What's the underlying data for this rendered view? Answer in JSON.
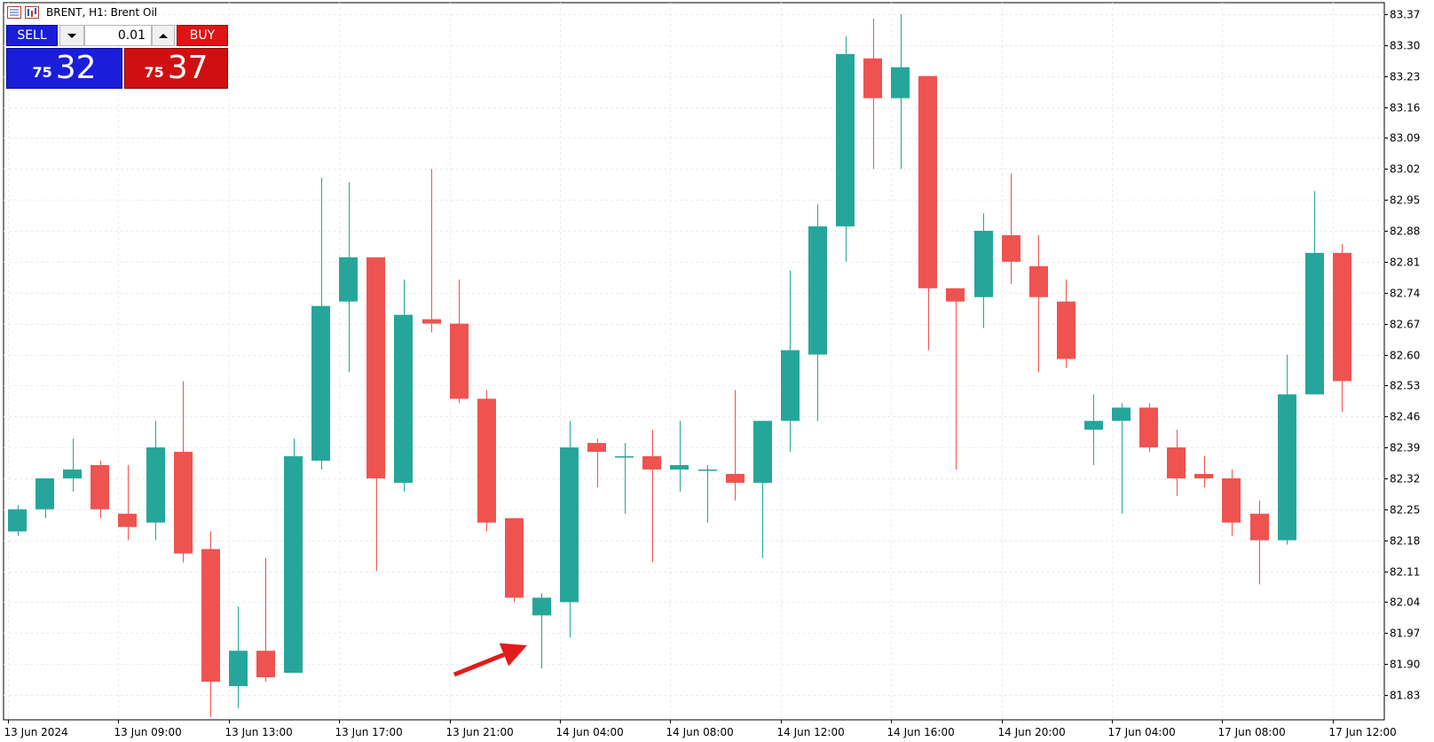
{
  "header": {
    "title": "BRENT, H1:  Brent Oil"
  },
  "trade_panel": {
    "sell_label": "SELL",
    "buy_label": "BUY",
    "lot_value": "0.01",
    "sell_price_small": "75",
    "sell_price_big": "32",
    "buy_price_small": "75",
    "buy_price_big": "37"
  },
  "colors": {
    "bull": "#26a69a",
    "bear": "#ef5350",
    "grid": "#ececec",
    "arrow": "#e31b1b",
    "sell_button": "#1b1ed8",
    "buy_button": "#e01414"
  },
  "chart_data": {
    "type": "candlestick",
    "symbol": "BRENT",
    "timeframe": "H1",
    "ylim": [
      81.79,
      83.38
    ],
    "y_ticks": [
      "83.37",
      "83.30",
      "83.23",
      "83.16",
      "83.09",
      "83.02",
      "82.95",
      "82.88",
      "82.81",
      "82.74",
      "82.67",
      "82.60",
      "82.53",
      "82.46",
      "82.39",
      "82.32",
      "82.25",
      "82.18",
      "82.11",
      "82.04",
      "81.97",
      "81.90",
      "81.83"
    ],
    "x_labels": [
      {
        "i": 0,
        "label": "13 Jun 2024"
      },
      {
        "i": 4,
        "label": "13 Jun 09:00"
      },
      {
        "i": 8,
        "label": "13 Jun 13:00"
      },
      {
        "i": 12,
        "label": "13 Jun 17:00"
      },
      {
        "i": 16,
        "label": "13 Jun 21:00"
      },
      {
        "i": 20,
        "label": "14 Jun 04:00"
      },
      {
        "i": 24,
        "label": "14 Jun 08:00"
      },
      {
        "i": 28,
        "label": "14 Jun 12:00"
      },
      {
        "i": 32,
        "label": "14 Jun 16:00"
      },
      {
        "i": 36,
        "label": "14 Jun 20:00"
      },
      {
        "i": 40,
        "label": "17 Jun 04:00"
      },
      {
        "i": 44,
        "label": "17 Jun 08:00"
      },
      {
        "i": 48,
        "label": "17 Jun 12:00"
      }
    ],
    "candles": [
      {
        "o": 82.2,
        "h": 82.26,
        "l": 82.19,
        "c": 82.25
      },
      {
        "o": 82.25,
        "h": 82.32,
        "l": 82.23,
        "c": 82.32
      },
      {
        "o": 82.32,
        "h": 82.41,
        "l": 82.29,
        "c": 82.34
      },
      {
        "o": 82.35,
        "h": 82.36,
        "l": 82.23,
        "c": 82.25
      },
      {
        "o": 82.24,
        "h": 82.35,
        "l": 82.18,
        "c": 82.21
      },
      {
        "o": 82.22,
        "h": 82.45,
        "l": 82.18,
        "c": 82.39
      },
      {
        "o": 82.38,
        "h": 82.54,
        "l": 82.13,
        "c": 82.15
      },
      {
        "o": 82.16,
        "h": 82.2,
        "l": 81.78,
        "c": 81.86
      },
      {
        "o": 81.85,
        "h": 82.03,
        "l": 81.8,
        "c": 81.93
      },
      {
        "o": 81.93,
        "h": 82.14,
        "l": 81.86,
        "c": 81.87
      },
      {
        "o": 81.88,
        "h": 82.41,
        "l": 81.88,
        "c": 82.37
      },
      {
        "o": 82.36,
        "h": 83.0,
        "l": 82.34,
        "c": 82.71
      },
      {
        "o": 82.72,
        "h": 82.99,
        "l": 82.56,
        "c": 82.82
      },
      {
        "o": 82.82,
        "h": 82.82,
        "l": 82.11,
        "c": 82.32
      },
      {
        "o": 82.31,
        "h": 82.77,
        "l": 82.29,
        "c": 82.69
      },
      {
        "o": 82.68,
        "h": 83.02,
        "l": 82.65,
        "c": 82.67
      },
      {
        "o": 82.67,
        "h": 82.77,
        "l": 82.49,
        "c": 82.5
      },
      {
        "o": 82.5,
        "h": 82.52,
        "l": 82.2,
        "c": 82.22
      },
      {
        "o": 82.23,
        "h": 82.23,
        "l": 82.04,
        "c": 82.05
      },
      {
        "o": 82.01,
        "h": 82.06,
        "l": 81.89,
        "c": 82.05
      },
      {
        "o": 82.04,
        "h": 82.45,
        "l": 81.96,
        "c": 82.39
      },
      {
        "o": 82.4,
        "h": 82.41,
        "l": 82.3,
        "c": 82.38
      },
      {
        "o": 82.37,
        "h": 82.4,
        "l": 82.24,
        "c": 82.37
      },
      {
        "o": 82.37,
        "h": 82.43,
        "l": 82.13,
        "c": 82.34
      },
      {
        "o": 82.34,
        "h": 82.45,
        "l": 82.29,
        "c": 82.35
      },
      {
        "o": 82.34,
        "h": 82.35,
        "l": 82.22,
        "c": 82.34
      },
      {
        "o": 82.33,
        "h": 82.52,
        "l": 82.27,
        "c": 82.31
      },
      {
        "o": 82.31,
        "h": 82.45,
        "l": 82.14,
        "c": 82.45
      },
      {
        "o": 82.45,
        "h": 82.79,
        "l": 82.38,
        "c": 82.61
      },
      {
        "o": 82.6,
        "h": 82.94,
        "l": 82.45,
        "c": 82.89
      },
      {
        "o": 82.89,
        "h": 83.32,
        "l": 82.81,
        "c": 83.28
      },
      {
        "o": 83.27,
        "h": 83.36,
        "l": 83.02,
        "c": 83.18
      },
      {
        "o": 83.18,
        "h": 83.37,
        "l": 83.02,
        "c": 83.25
      },
      {
        "o": 83.23,
        "h": 83.23,
        "l": 82.61,
        "c": 82.75
      },
      {
        "o": 82.75,
        "h": 82.75,
        "l": 82.34,
        "c": 82.72
      },
      {
        "o": 82.73,
        "h": 82.92,
        "l": 82.66,
        "c": 82.88
      },
      {
        "o": 82.87,
        "h": 83.01,
        "l": 82.76,
        "c": 82.81
      },
      {
        "o": 82.8,
        "h": 82.87,
        "l": 82.56,
        "c": 82.73
      },
      {
        "o": 82.72,
        "h": 82.77,
        "l": 82.57,
        "c": 82.59
      },
      {
        "o": 82.43,
        "h": 82.51,
        "l": 82.35,
        "c": 82.45
      },
      {
        "o": 82.45,
        "h": 82.49,
        "l": 82.24,
        "c": 82.48
      },
      {
        "o": 82.48,
        "h": 82.49,
        "l": 82.38,
        "c": 82.39
      },
      {
        "o": 82.39,
        "h": 82.43,
        "l": 82.28,
        "c": 82.32
      },
      {
        "o": 82.33,
        "h": 82.37,
        "l": 82.3,
        "c": 82.32
      },
      {
        "o": 82.32,
        "h": 82.34,
        "l": 82.19,
        "c": 82.22
      },
      {
        "o": 82.24,
        "h": 82.27,
        "l": 82.08,
        "c": 82.18
      },
      {
        "o": 82.18,
        "h": 82.6,
        "l": 82.17,
        "c": 82.51
      },
      {
        "o": 82.51,
        "h": 82.97,
        "l": 82.51,
        "c": 82.83
      },
      {
        "o": 82.83,
        "h": 82.85,
        "l": 82.47,
        "c": 82.54
      }
    ],
    "annotations": [
      {
        "type": "arrow",
        "color": "#e31b1b",
        "points_to_candle": 19
      }
    ]
  }
}
